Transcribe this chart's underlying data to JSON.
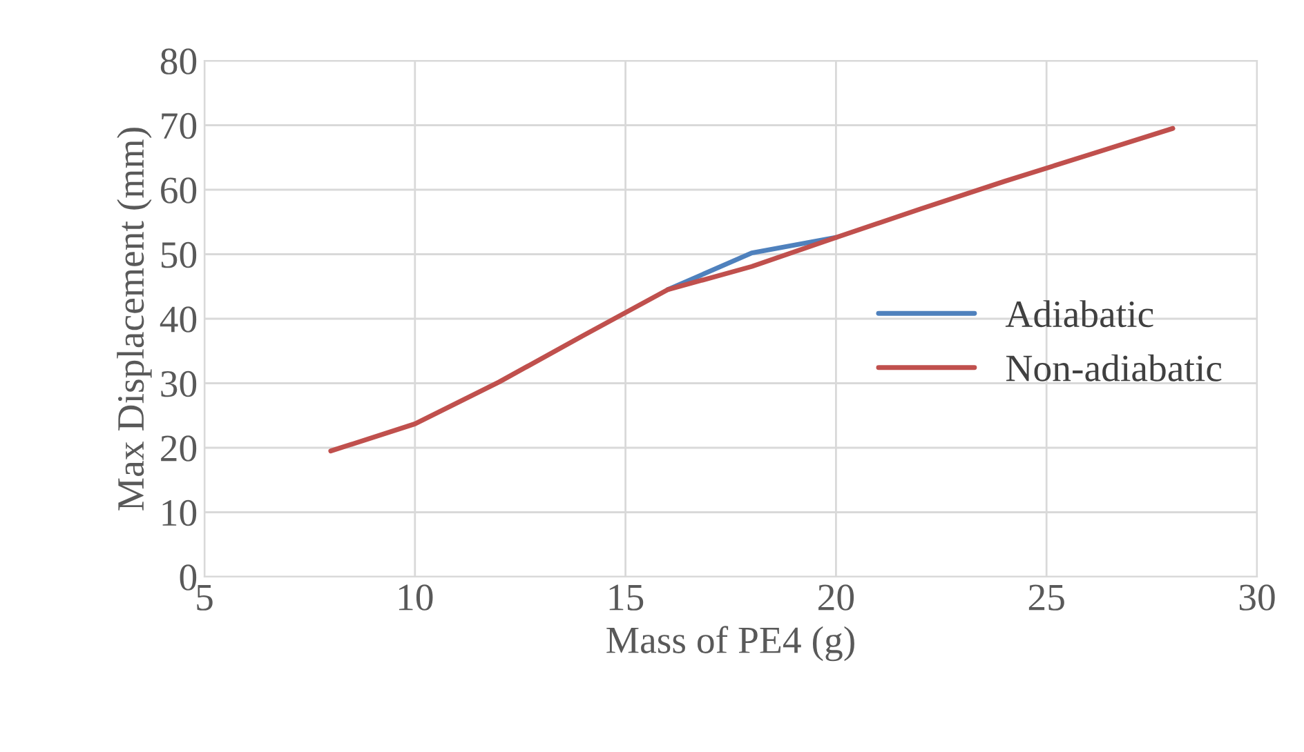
{
  "chart_data": {
    "type": "line",
    "xlabel": "Mass of PE4 (g)",
    "ylabel": "Max Displacement (mm)",
    "x": [
      8,
      10,
      12,
      14,
      16,
      18,
      20,
      22,
      24,
      26,
      28
    ],
    "series": [
      {
        "name": "Adiabatic",
        "color": "#4f81bd",
        "values": [
          null,
          null,
          null,
          null,
          44.5,
          50.2,
          52.6,
          null,
          null,
          null,
          null
        ]
      },
      {
        "name": "Non-adiabatic",
        "color": "#c0504d",
        "values": [
          19.5,
          23.7,
          30.2,
          37.4,
          44.5,
          48.1,
          52.6,
          57,
          61.3,
          65.4,
          69.5
        ]
      }
    ],
    "xlim": [
      5,
      30
    ],
    "xticks": [
      5,
      10,
      15,
      20,
      25,
      30
    ],
    "ylim": [
      0,
      80
    ],
    "yticks": [
      0,
      10,
      20,
      30,
      40,
      50,
      60,
      70,
      80
    ],
    "grid": true,
    "legend": "right",
    "marker": "none",
    "line_style": "solid"
  }
}
